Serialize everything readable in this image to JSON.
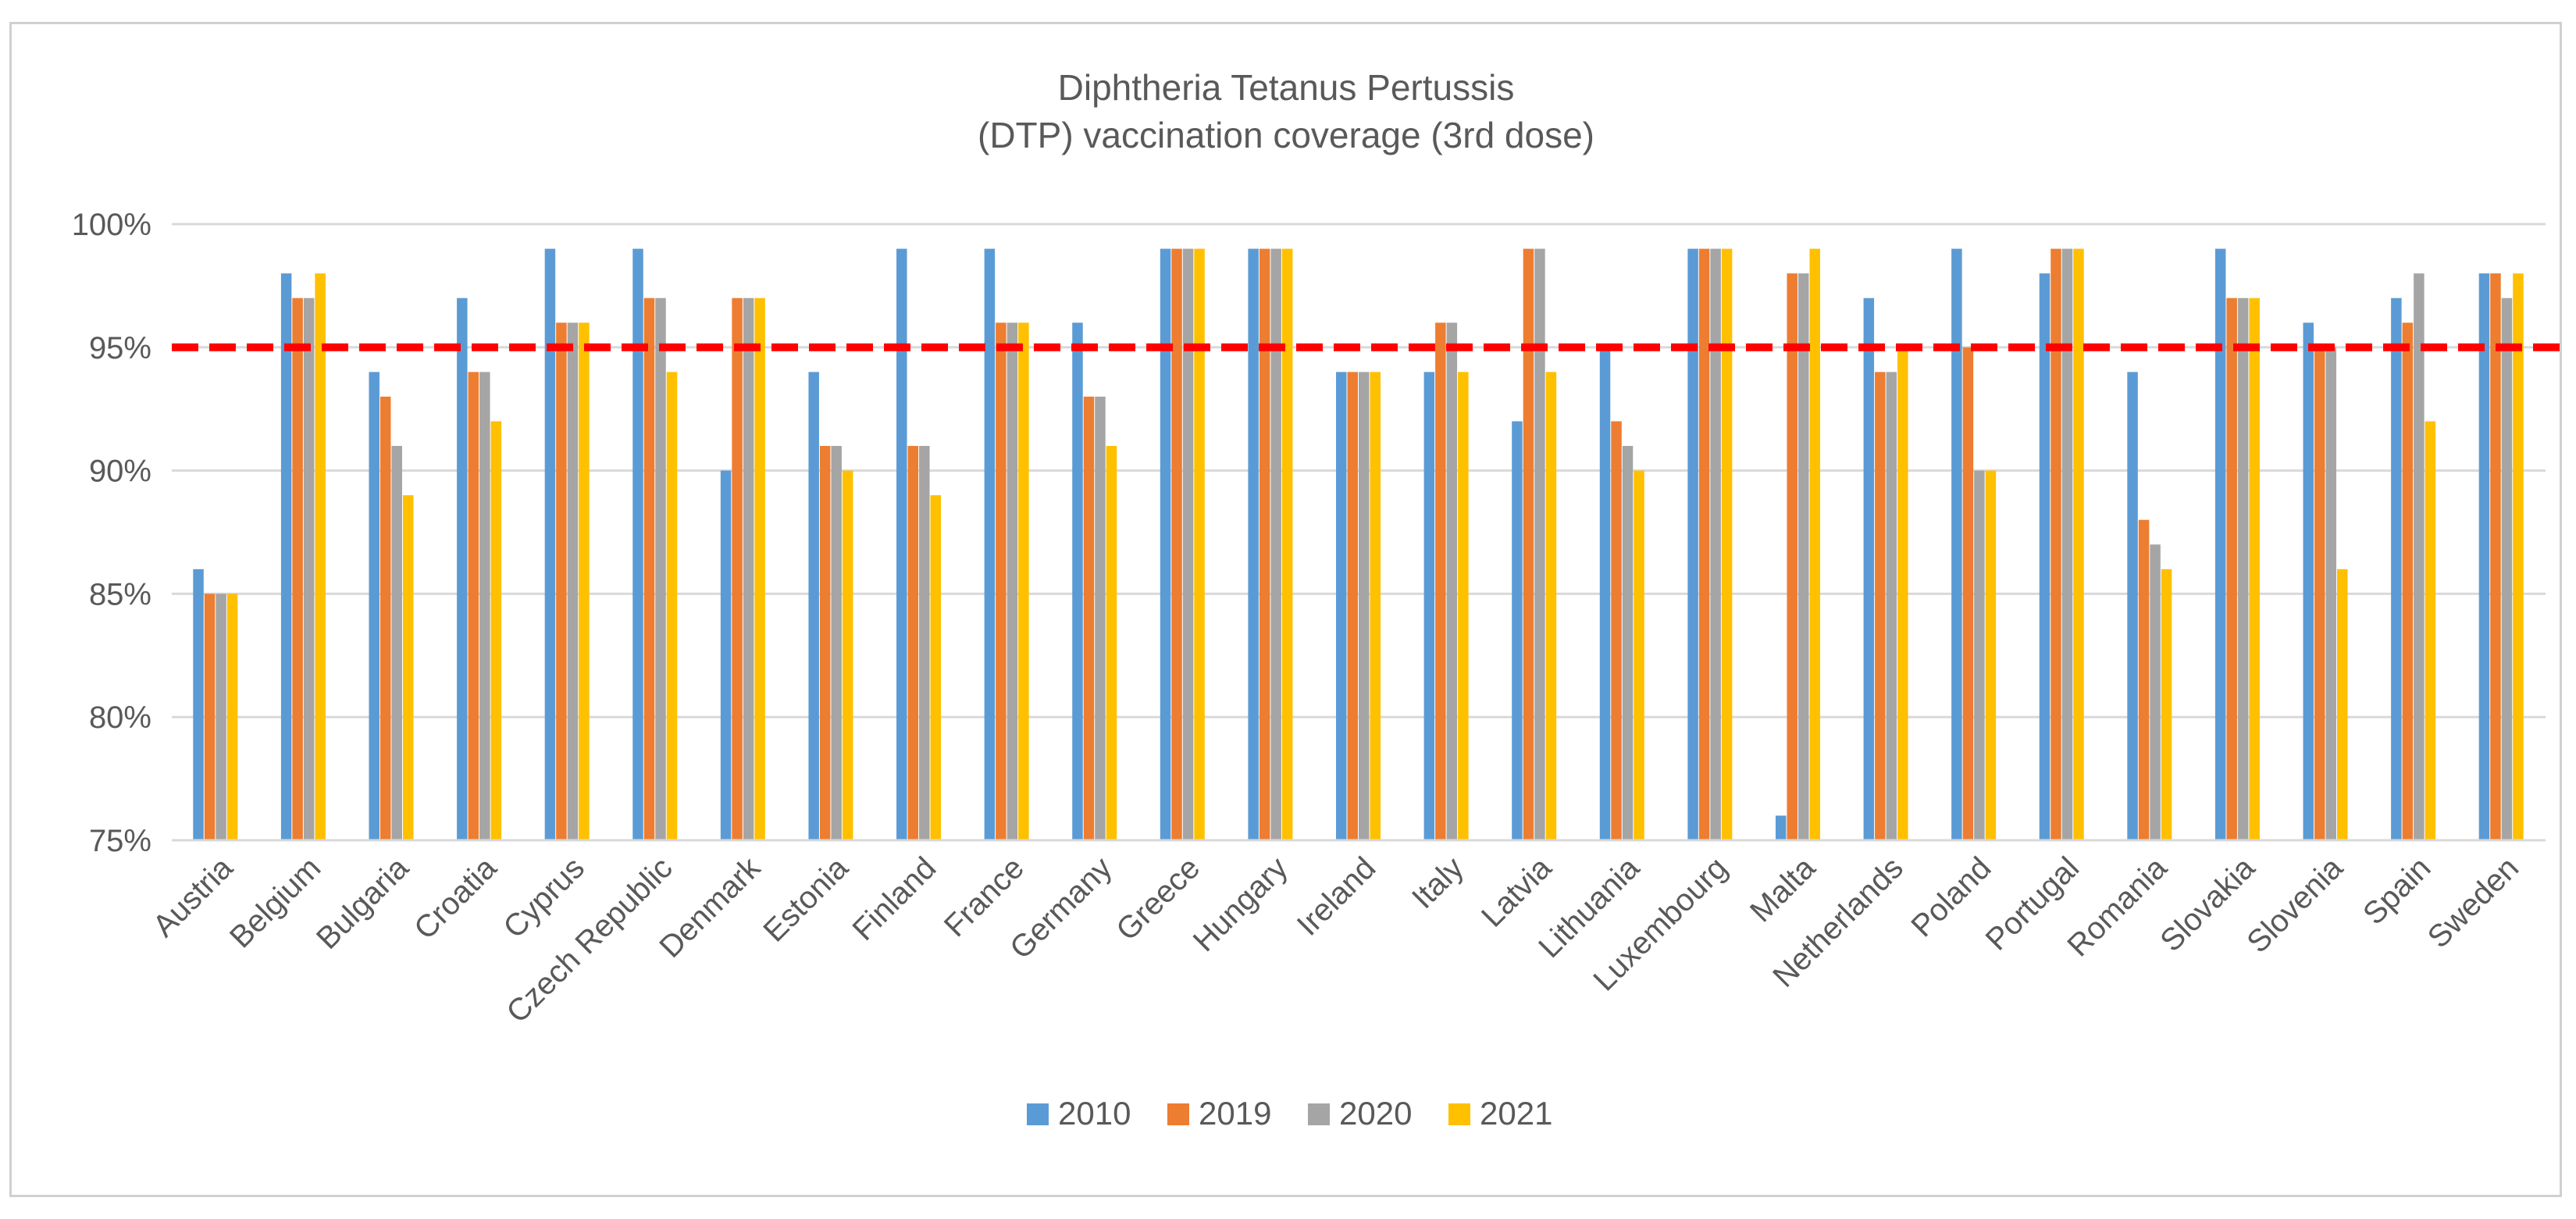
{
  "chart_data": {
    "type": "bar",
    "title_lines": [
      "Diphtheria Tetanus Pertussis",
      "(DTP) vaccination coverage (3rd dose)"
    ],
    "xlabel": "",
    "ylabel": "",
    "ylim": [
      75,
      100
    ],
    "y_ticks": [
      75,
      80,
      85,
      90,
      95,
      100
    ],
    "y_tick_labels": [
      "75%",
      "80%",
      "85%",
      "90%",
      "95%",
      "100%"
    ],
    "grid": true,
    "legend_position": "bottom",
    "reference_line": {
      "value": 95,
      "color": "#ff0000",
      "style": "dashed"
    },
    "categories": [
      "Austria",
      "Belgium",
      "Bulgaria",
      "Croatia",
      "Cyprus",
      "Czech Republic",
      "Denmark",
      "Estonia",
      "Finland",
      "France",
      "Germany",
      "Greece",
      "Hungary",
      "Ireland",
      "Italy",
      "Latvia",
      "Lithuania",
      "Luxembourg",
      "Malta",
      "Netherlands",
      "Poland",
      "Portugal",
      "Romania",
      "Slovakia",
      "Slovenia",
      "Spain",
      "Sweden"
    ],
    "series": [
      {
        "name": "2010",
        "color": "#5b9bd5",
        "values": [
          86,
          98,
          94,
          97,
          99,
          99,
          90,
          94,
          99,
          99,
          96,
          99,
          99,
          94,
          94,
          92,
          95,
          99,
          76,
          97,
          99,
          98,
          94,
          99,
          96,
          97,
          98
        ]
      },
      {
        "name": "2019",
        "color": "#ed7d31",
        "values": [
          85,
          97,
          93,
          94,
          96,
          97,
          97,
          91,
          91,
          96,
          93,
          99,
          99,
          94,
          96,
          99,
          92,
          99,
          98,
          94,
          95,
          99,
          88,
          97,
          95,
          96,
          98
        ]
      },
      {
        "name": "2020",
        "color": "#a5a5a5",
        "values": [
          85,
          97,
          91,
          94,
          96,
          97,
          97,
          91,
          91,
          96,
          93,
          99,
          99,
          94,
          96,
          99,
          91,
          99,
          98,
          94,
          90,
          99,
          87,
          97,
          95,
          98,
          97
        ]
      },
      {
        "name": "2021",
        "color": "#ffc000",
        "values": [
          85,
          98,
          89,
          92,
          96,
          94,
          97,
          90,
          89,
          96,
          91,
          99,
          99,
          94,
          94,
          94,
          90,
          99,
          99,
          95,
          90,
          99,
          86,
          97,
          86,
          92,
          98
        ]
      }
    ]
  }
}
